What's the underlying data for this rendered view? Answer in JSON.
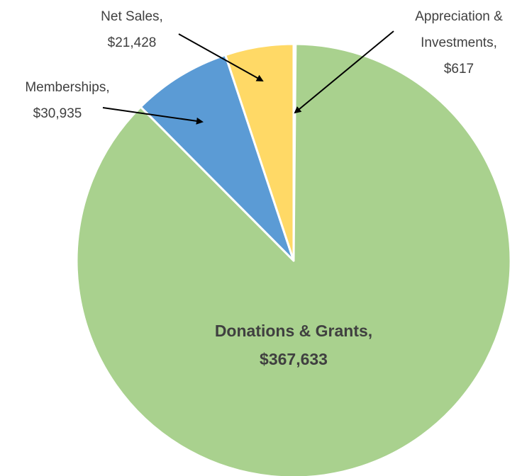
{
  "chart_data": {
    "type": "pie",
    "title": "",
    "start_angle_deg": 0,
    "direction": "clockwise",
    "slices": [
      {
        "label_line1": "Appreciation &",
        "label_line2": "Investments,",
        "label_line3": "$617",
        "value": 617,
        "color": "#5b9bd5"
      },
      {
        "label_line1": "Donations & Grants,",
        "label_line2": "$367,633",
        "label_line3": "",
        "value": 367633,
        "color": "#a9d18e"
      },
      {
        "label_line1": "Memberships,",
        "label_line2": "$30,935",
        "label_line3": "",
        "value": 30935,
        "color": "#5b9bd5"
      },
      {
        "label_line1": "Net Sales,",
        "label_line2": "$21,428",
        "label_line3": "",
        "value": 21428,
        "color": "#ffd966"
      }
    ],
    "slice_border_color": "#ffffff"
  }
}
